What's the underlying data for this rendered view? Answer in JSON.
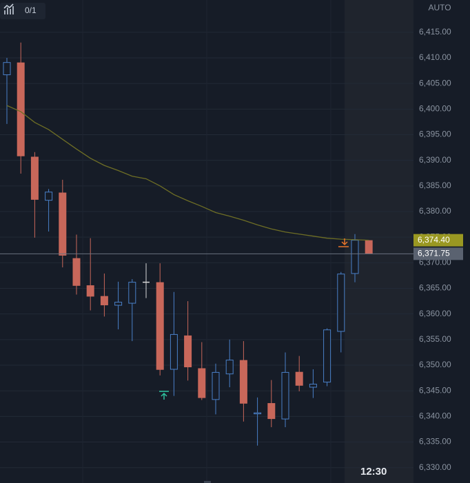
{
  "chart_data": {
    "type": "candlestick",
    "toolbar_text": "0/1",
    "scale_mode": "AUTO",
    "categories": [
      null,
      null,
      null,
      null,
      null,
      null,
      null,
      null,
      null,
      null,
      null,
      null,
      null,
      null,
      null,
      null,
      null,
      null,
      null,
      null,
      null,
      null,
      null,
      null,
      null,
      null,
      "12:30"
    ],
    "open": [
      6406.7,
      6409.1,
      6390.7,
      6382.2,
      6383.7,
      6370.9,
      6365.6,
      6363.5,
      6361.7,
      6362.1,
      6366.2,
      6366.2,
      6349.2,
      6355.8,
      6349.4,
      6343.3,
      6348.3,
      6351.0,
      6340.5,
      6342.6,
      6339.5,
      6348.7,
      6345.7,
      6346.7,
      6356.6,
      6367.9,
      6374.4
    ],
    "high": [
      6410.0,
      6413.0,
      6391.6,
      6384.4,
      6386.2,
      6375.5,
      6374.8,
      6367.9,
      6366.3,
      6366.8,
      6369.9,
      6369.9,
      6364.3,
      6362.5,
      6354.5,
      6350.3,
      6355.0,
      6354.7,
      6343.7,
      6347.1,
      6352.5,
      6351.8,
      6349.2,
      6357.2,
      6368.2,
      6375.6,
      6374.4
    ],
    "low": [
      6397.1,
      6387.4,
      6374.9,
      6376.1,
      6369.1,
      6363.8,
      6360.7,
      6359.5,
      6357.0,
      6354.7,
      6363.1,
      6348.0,
      6344.0,
      6347.0,
      6343.2,
      6340.4,
      6345.7,
      6339.0,
      6334.3,
      6337.9,
      6337.9,
      6344.9,
      6343.6,
      6345.9,
      6352.5,
      6366.2,
      6371.75
    ],
    "close": [
      6409.1,
      6390.8,
      6382.3,
      6383.8,
      6371.4,
      6365.5,
      6363.4,
      6361.7,
      6362.3,
      6366.2,
      6366.2,
      6349.1,
      6356.0,
      6349.6,
      6343.6,
      6348.6,
      6351.0,
      6342.5,
      6340.7,
      6339.5,
      6348.6,
      6346.0,
      6346.3,
      6356.9,
      6367.8,
      6374.4,
      6371.75
    ],
    "up_color": "#4a80c8",
    "down_color": "#c8675a",
    "doji_color": "#d8d8d8",
    "ma": {
      "color": "#6e6e25",
      "values": [
        6400.7,
        6399.5,
        6397.4,
        6396.0,
        6394.1,
        6392.2,
        6390.4,
        6389.0,
        6388.0,
        6386.9,
        6386.4,
        6385.0,
        6383.3,
        6382.1,
        6381.0,
        6379.8,
        6379.1,
        6378.3,
        6377.4,
        6376.6,
        6376.0,
        6375.6,
        6375.2,
        6374.8,
        6374.6,
        6374.5,
        6374.4
      ]
    },
    "price_tags": [
      {
        "value": 6374.4,
        "label": "6,374.40",
        "color": "#9a9822"
      },
      {
        "value": 6371.75,
        "label": "6,371.75",
        "color": "#5a6270"
      }
    ],
    "ylim": [
      6327.0,
      6421.3
    ],
    "yticks": [
      {
        "value": 6330,
        "label": "6,330.00"
      },
      {
        "value": 6335,
        "label": "6,335.00"
      },
      {
        "value": 6340,
        "label": "6,340.00"
      },
      {
        "value": 6345,
        "label": "6,345.00"
      },
      {
        "value": 6350,
        "label": "6,350.00"
      },
      {
        "value": 6355,
        "label": "6,355.00"
      },
      {
        "value": 6360,
        "label": "6,360.00"
      },
      {
        "value": 6365,
        "label": "6,365.00"
      },
      {
        "value": 6370,
        "label": "6,370.00"
      },
      {
        "value": 6375,
        "label": "6,375.00"
      },
      {
        "value": 6380,
        "label": "6,380.00"
      },
      {
        "value": 6385,
        "label": "6,385.00"
      },
      {
        "value": 6390,
        "label": "6,390.00"
      },
      {
        "value": 6395,
        "label": "6,395.00"
      },
      {
        "value": 6400,
        "label": "6,400.00"
      },
      {
        "value": 6405,
        "label": "6,405.00"
      },
      {
        "value": 6410,
        "label": "6,410.00"
      },
      {
        "value": 6415,
        "label": "6,415.00"
      }
    ],
    "grid": true
  }
}
